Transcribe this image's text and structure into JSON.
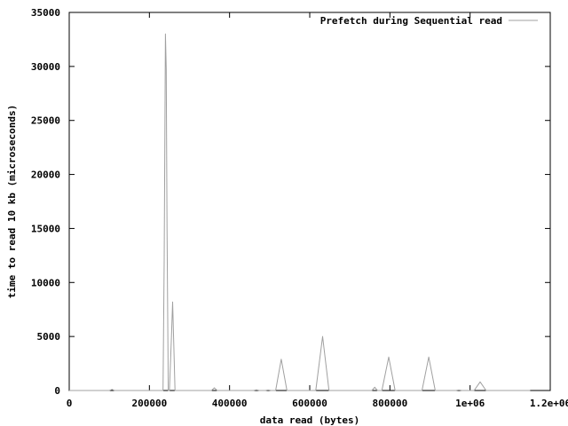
{
  "chart_data": {
    "type": "line",
    "title": "",
    "xlabel": "data read (bytes)",
    "ylabel": "time to read 10 kb (microseconds)",
    "xlim": [
      0,
      1200000
    ],
    "ylim": [
      0,
      35000
    ],
    "x_ticks": [
      0,
      200000,
      400000,
      600000,
      800000,
      1000000,
      1200000
    ],
    "x_tick_labels": [
      "0",
      "200000",
      "400000",
      "600000",
      "800000",
      "1e+06",
      "1.2e+06"
    ],
    "y_ticks": [
      0,
      5000,
      10000,
      15000,
      20000,
      25000,
      30000,
      35000
    ],
    "y_tick_labels": [
      "0",
      "5000",
      "10000",
      "15000",
      "20000",
      "25000",
      "30000",
      "35000"
    ],
    "grid": false,
    "legend": "top-right",
    "series": [
      {
        "name": "Prefetch during Sequential read",
        "color": "#a0a0a0",
        "points": [
          [
            0,
            0
          ],
          [
            100000,
            0
          ],
          [
            107000,
            100
          ],
          [
            113000,
            0
          ],
          [
            230000,
            0
          ],
          [
            234000,
            0
          ],
          [
            237000,
            12000
          ],
          [
            240000,
            33000
          ],
          [
            242000,
            29800
          ],
          [
            244000,
            15000
          ],
          [
            247000,
            0
          ],
          [
            250000,
            0
          ],
          [
            255000,
            5000
          ],
          [
            258000,
            8200
          ],
          [
            261000,
            4000
          ],
          [
            264000,
            0
          ],
          [
            355000,
            0
          ],
          [
            362000,
            250
          ],
          [
            369000,
            0
          ],
          [
            460000,
            0
          ],
          [
            467000,
            60
          ],
          [
            474000,
            0
          ],
          [
            490000,
            0
          ],
          [
            496000,
            50
          ],
          [
            503000,
            0
          ],
          [
            515000,
            0
          ],
          [
            529000,
            2900
          ],
          [
            543000,
            0
          ],
          [
            615000,
            0
          ],
          [
            632000,
            5000
          ],
          [
            648000,
            0
          ],
          [
            755000,
            0
          ],
          [
            762000,
            300
          ],
          [
            769000,
            0
          ],
          [
            780000,
            0
          ],
          [
            797000,
            3100
          ],
          [
            813000,
            0
          ],
          [
            880000,
            0
          ],
          [
            897000,
            3100
          ],
          [
            913000,
            0
          ],
          [
            965000,
            0
          ],
          [
            972000,
            50
          ],
          [
            979000,
            0
          ],
          [
            1010000,
            0
          ],
          [
            1025000,
            800
          ],
          [
            1040000,
            0
          ],
          [
            1150000,
            0
          ]
        ]
      }
    ]
  }
}
